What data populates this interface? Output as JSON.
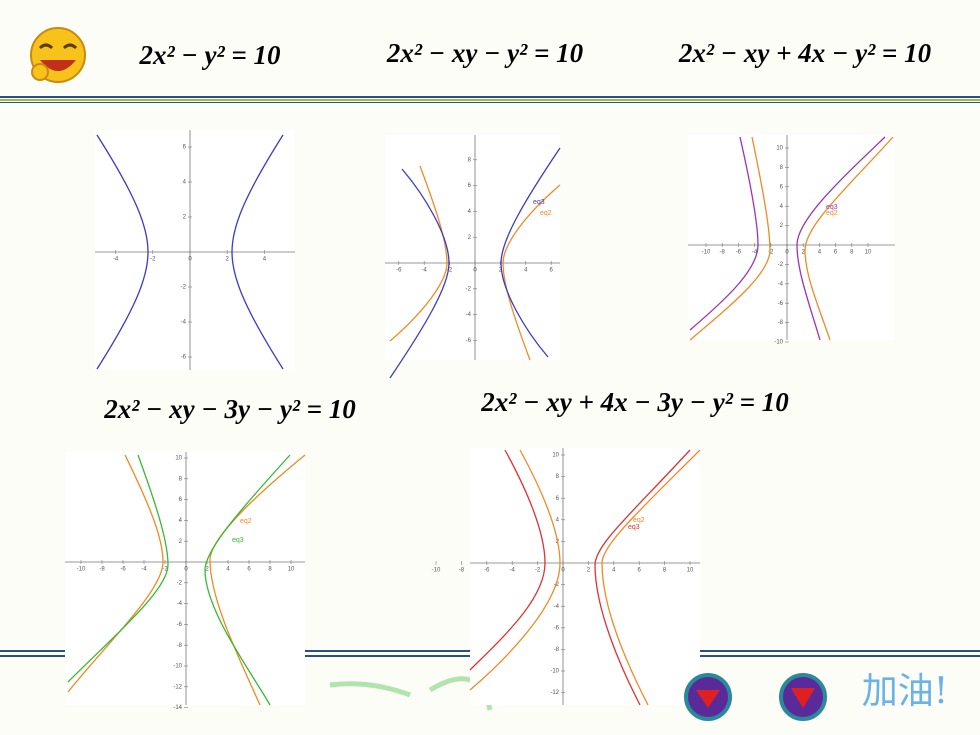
{
  "equations": [
    "2x² − y² = 10",
    "2x² − xy − y² = 10",
    "2x² − xy + 4x − y² = 10",
    "2x² − xy − 3y − y² = 10",
    "2x² − xy + 4x − 3y − y² = 10"
  ],
  "plots": [
    {
      "xticks": [
        -4,
        -2,
        0,
        2,
        4
      ],
      "yticks": [
        -6,
        -4,
        -2,
        2,
        4,
        6
      ],
      "legend": []
    },
    {
      "xticks": [
        -6,
        -4,
        -2,
        0,
        2,
        4,
        6
      ],
      "yticks": [
        -6,
        -4,
        -2,
        2,
        4,
        6,
        8
      ],
      "legend": [
        {
          "label": "eq3",
          "color": "#3a3acc"
        },
        {
          "label": "eq2",
          "color": "#f08a24"
        }
      ]
    },
    {
      "xticks": [
        -10,
        -8,
        -6,
        -4,
        -2,
        0,
        2,
        4,
        6,
        8,
        10
      ],
      "yticks": [
        -10,
        -8,
        -6,
        -4,
        -2,
        2,
        4,
        6,
        8,
        10
      ],
      "legend": [
        {
          "label": "eq3",
          "color": "#9933bb"
        },
        {
          "label": "eq2",
          "color": "#f08a24"
        }
      ]
    },
    {
      "xticks": [
        -10,
        -8,
        -6,
        -4,
        -2,
        0,
        2,
        4,
        6,
        8,
        10
      ],
      "yticks": [
        -14,
        -12,
        -10,
        -8,
        -6,
        -4,
        -2,
        2,
        4,
        6,
        8,
        10
      ],
      "legend": [
        {
          "label": "eq2",
          "color": "#f08a24"
        },
        {
          "label": "eq3",
          "color": "#33bb33"
        }
      ]
    },
    {
      "xticks": [
        -10,
        -8,
        -6,
        -4,
        -2,
        0,
        2,
        4,
        6,
        8,
        10
      ],
      "yticks": [
        -12,
        -10,
        -8,
        -6,
        -4,
        -2,
        2,
        4,
        6,
        8,
        10
      ],
      "legend": [
        {
          "label": "eq2",
          "color": "#f08a24"
        },
        {
          "label": "eq3",
          "color": "#dd3333"
        }
      ]
    }
  ],
  "footer": {
    "slogan": "加油!"
  }
}
